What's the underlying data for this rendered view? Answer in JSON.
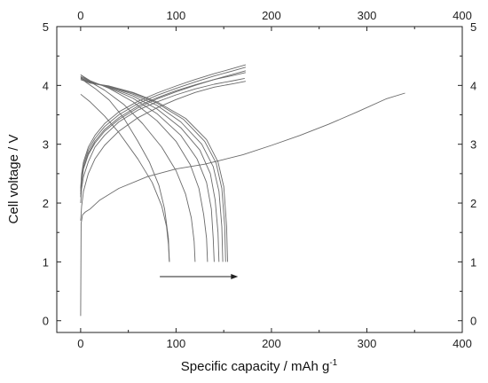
{
  "chart_data": {
    "type": "line",
    "title": "",
    "xlabel": "Specific capacity / mAh g",
    "xlabel_superscript": "-1",
    "ylabel": "Cell voltage / V",
    "xlim": [
      -25,
      400
    ],
    "ylim": [
      -0.2,
      5
    ],
    "x_ticks": [
      "0",
      "100",
      "200",
      "300",
      "400"
    ],
    "y_ticks": [
      "0",
      "1",
      "2",
      "3",
      "4",
      "5"
    ],
    "top_x_ticks": [
      "0",
      "100",
      "200",
      "300",
      "400"
    ],
    "right_y_ticks": [
      "0",
      "1",
      "2",
      "3",
      "4",
      "5"
    ],
    "grid": false,
    "legend": "none",
    "line_color": "#6a6a6a",
    "annotation": "arrow pointing right from x≈83 to x≈165 at V≈0.75",
    "annotation_arrow": {
      "x_start": 83,
      "x_end": 165,
      "y": 0.75
    },
    "series": [
      {
        "points": [
          [
            0,
            0.08
          ],
          [
            0.5,
            1.65
          ],
          [
            2,
            1.8
          ],
          [
            5,
            1.85
          ],
          [
            10,
            1.9
          ],
          [
            20,
            2.05
          ],
          [
            40,
            2.25
          ],
          [
            70,
            2.45
          ],
          [
            100,
            2.58
          ],
          [
            130,
            2.66
          ],
          [
            150,
            2.74
          ],
          [
            170,
            2.82
          ],
          [
            200,
            2.98
          ],
          [
            230,
            3.15
          ],
          [
            260,
            3.34
          ],
          [
            290,
            3.55
          ],
          [
            320,
            3.77
          ],
          [
            340,
            3.87
          ]
        ]
      },
      {
        "points": [
          [
            0,
            4.15
          ],
          [
            5,
            4.06
          ],
          [
            15,
            3.95
          ],
          [
            30,
            3.75
          ],
          [
            45,
            3.45
          ],
          [
            60,
            3.05
          ],
          [
            72,
            2.7
          ],
          [
            82,
            2.3
          ],
          [
            88,
            1.9
          ],
          [
            92,
            1.4
          ],
          [
            93,
            1.0
          ]
        ]
      },
      {
        "points": [
          [
            0,
            3.85
          ],
          [
            10,
            3.72
          ],
          [
            25,
            3.48
          ],
          [
            40,
            3.2
          ],
          [
            60,
            2.75
          ],
          [
            75,
            2.35
          ],
          [
            85,
            1.95
          ],
          [
            90,
            1.6
          ],
          [
            92,
            1.3
          ],
          [
            93,
            1.0
          ]
        ]
      },
      {
        "points": [
          [
            0,
            4.18
          ],
          [
            10,
            4.06
          ],
          [
            25,
            3.92
          ],
          [
            45,
            3.68
          ],
          [
            65,
            3.35
          ],
          [
            85,
            2.95
          ],
          [
            100,
            2.55
          ],
          [
            110,
            2.15
          ],
          [
            116,
            1.75
          ],
          [
            119,
            1.35
          ],
          [
            120,
            1.0
          ]
        ]
      },
      {
        "points": [
          [
            0,
            4.18
          ],
          [
            10,
            4.08
          ],
          [
            30,
            3.95
          ],
          [
            55,
            3.72
          ],
          [
            80,
            3.4
          ],
          [
            100,
            3.05
          ],
          [
            115,
            2.65
          ],
          [
            124,
            2.25
          ],
          [
            129,
            1.8
          ],
          [
            132,
            1.4
          ],
          [
            133,
            1.0
          ]
        ]
      },
      {
        "points": [
          [
            0,
            4.15
          ],
          [
            10,
            4.07
          ],
          [
            30,
            3.96
          ],
          [
            55,
            3.78
          ],
          [
            80,
            3.52
          ],
          [
            105,
            3.15
          ],
          [
            122,
            2.75
          ],
          [
            132,
            2.35
          ],
          [
            137,
            1.9
          ],
          [
            139,
            1.4
          ],
          [
            140,
            1.0
          ]
        ]
      },
      {
        "points": [
          [
            0,
            4.13
          ],
          [
            10,
            4.06
          ],
          [
            30,
            3.97
          ],
          [
            55,
            3.82
          ],
          [
            80,
            3.6
          ],
          [
            105,
            3.28
          ],
          [
            125,
            2.9
          ],
          [
            136,
            2.5
          ],
          [
            141,
            2.05
          ],
          [
            144,
            1.5
          ],
          [
            145,
            1.0
          ]
        ]
      },
      {
        "points": [
          [
            0,
            4.12
          ],
          [
            10,
            4.05
          ],
          [
            30,
            3.98
          ],
          [
            55,
            3.85
          ],
          [
            80,
            3.66
          ],
          [
            105,
            3.38
          ],
          [
            127,
            3.0
          ],
          [
            139,
            2.62
          ],
          [
            145,
            2.2
          ],
          [
            148,
            1.6
          ],
          [
            149,
            1.0
          ]
        ]
      },
      {
        "points": [
          [
            0,
            4.1
          ],
          [
            10,
            4.04
          ],
          [
            30,
            3.98
          ],
          [
            55,
            3.87
          ],
          [
            80,
            3.7
          ],
          [
            108,
            3.42
          ],
          [
            130,
            3.05
          ],
          [
            142,
            2.68
          ],
          [
            148,
            2.25
          ],
          [
            151,
            1.6
          ],
          [
            152,
            1.0
          ]
        ]
      },
      {
        "points": [
          [
            0,
            4.1
          ],
          [
            10,
            4.04
          ],
          [
            30,
            3.99
          ],
          [
            55,
            3.88
          ],
          [
            80,
            3.72
          ],
          [
            110,
            3.44
          ],
          [
            132,
            3.08
          ],
          [
            144,
            2.7
          ],
          [
            150,
            2.28
          ],
          [
            153,
            1.6
          ],
          [
            154,
            1.0
          ]
        ]
      },
      {
        "points": [
          [
            0,
            2.0
          ],
          [
            1,
            2.25
          ],
          [
            3,
            2.45
          ],
          [
            8,
            2.7
          ],
          [
            15,
            2.95
          ],
          [
            25,
            3.15
          ],
          [
            40,
            3.38
          ],
          [
            60,
            3.58
          ],
          [
            80,
            3.72
          ],
          [
            100,
            3.84
          ],
          [
            120,
            3.94
          ],
          [
            140,
            4.02
          ],
          [
            160,
            4.08
          ],
          [
            172,
            4.12
          ]
        ]
      },
      {
        "points": [
          [
            0,
            2.15
          ],
          [
            1,
            2.4
          ],
          [
            3,
            2.6
          ],
          [
            8,
            2.85
          ],
          [
            15,
            3.05
          ],
          [
            25,
            3.25
          ],
          [
            40,
            3.45
          ],
          [
            60,
            3.65
          ],
          [
            80,
            3.79
          ],
          [
            100,
            3.91
          ],
          [
            120,
            4.01
          ],
          [
            140,
            4.1
          ],
          [
            160,
            4.17
          ],
          [
            173,
            4.22
          ]
        ]
      },
      {
        "points": [
          [
            0,
            2.1
          ],
          [
            1,
            2.35
          ],
          [
            3,
            2.58
          ],
          [
            8,
            2.82
          ],
          [
            15,
            3.02
          ],
          [
            25,
            3.22
          ],
          [
            40,
            3.42
          ],
          [
            60,
            3.62
          ],
          [
            80,
            3.77
          ],
          [
            100,
            3.89
          ],
          [
            120,
            4.0
          ],
          [
            140,
            4.1
          ],
          [
            160,
            4.19
          ],
          [
            173,
            4.25
          ]
        ]
      },
      {
        "points": [
          [
            0,
            2.2
          ],
          [
            1,
            2.45
          ],
          [
            3,
            2.65
          ],
          [
            8,
            2.9
          ],
          [
            15,
            3.1
          ],
          [
            25,
            3.3
          ],
          [
            40,
            3.5
          ],
          [
            60,
            3.69
          ],
          [
            80,
            3.83
          ],
          [
            100,
            3.95
          ],
          [
            120,
            4.06
          ],
          [
            140,
            4.16
          ],
          [
            160,
            4.25
          ],
          [
            173,
            4.31
          ]
        ]
      },
      {
        "points": [
          [
            0,
            2.25
          ],
          [
            1,
            2.5
          ],
          [
            3,
            2.7
          ],
          [
            8,
            2.95
          ],
          [
            15,
            3.15
          ],
          [
            25,
            3.35
          ],
          [
            40,
            3.55
          ],
          [
            60,
            3.73
          ],
          [
            80,
            3.87
          ],
          [
            100,
            3.99
          ],
          [
            120,
            4.1
          ],
          [
            140,
            4.2
          ],
          [
            160,
            4.29
          ],
          [
            173,
            4.35
          ]
        ]
      },
      {
        "points": [
          [
            0,
            1.7
          ],
          [
            1,
            1.95
          ],
          [
            3,
            2.2
          ],
          [
            8,
            2.5
          ],
          [
            15,
            2.75
          ],
          [
            25,
            2.98
          ],
          [
            40,
            3.22
          ],
          [
            60,
            3.45
          ],
          [
            80,
            3.62
          ],
          [
            100,
            3.76
          ],
          [
            120,
            3.88
          ],
          [
            140,
            3.97
          ],
          [
            160,
            4.03
          ],
          [
            173,
            4.07
          ]
        ]
      }
    ]
  }
}
